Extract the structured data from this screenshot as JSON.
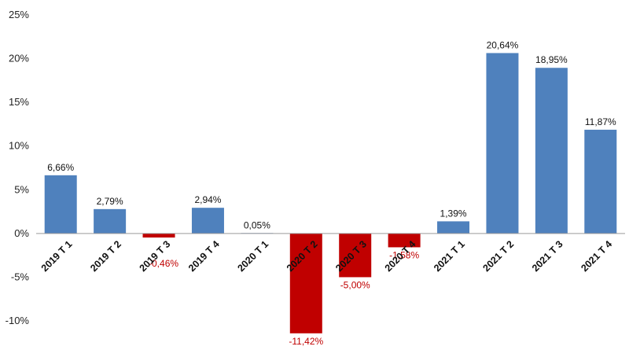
{
  "chart_data": {
    "type": "bar",
    "title": "",
    "xlabel": "",
    "ylabel": "",
    "ylim": [
      -10,
      25
    ],
    "yticks": [
      -10,
      -5,
      0,
      5,
      10,
      15,
      20,
      25
    ],
    "ytick_labels": [
      "-10%",
      "-5%",
      "0%",
      "5%",
      "10%",
      "15%",
      "20%",
      "25%"
    ],
    "grid": false,
    "legend": "none",
    "categories": [
      "2019 T 1",
      "2019 T 2",
      "2019 T 3",
      "2019 T 4",
      "2020 T 1",
      "2020 T 2",
      "2020 T 3",
      "2020 T 4",
      "2021 T 1",
      "2021 T 2",
      "2021 T 3",
      "2021 T 4"
    ],
    "values": [
      6.66,
      2.79,
      -0.46,
      2.94,
      0.05,
      -11.42,
      -5.0,
      -1.58,
      1.39,
      20.64,
      18.95,
      11.87
    ],
    "data_labels": [
      "6,66%",
      "2,79%",
      "-0,46%",
      "2,94%",
      "0,05%",
      "-11,42%",
      "-5,00%",
      "-1,58%",
      "1,39%",
      "20,64%",
      "18,95%",
      "11,87%"
    ],
    "colors": {
      "positive": "#4F81BD",
      "negative": "#C00000",
      "positive_label": "#111111",
      "negative_label": "#C00000",
      "axis": "#9a9a9a"
    }
  }
}
